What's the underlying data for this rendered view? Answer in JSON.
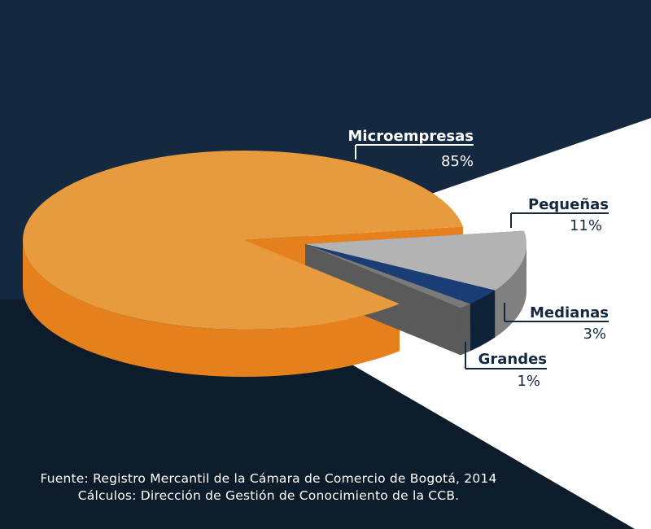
{
  "colors": {
    "background_top": "#14283f",
    "background_bottom": "#0d1c2b",
    "spotlight": "#ffffff",
    "label_name": "#14283f",
    "label_value": "#14283f",
    "label_name_on_dark": "#ffffff",
    "label_value_on_dark": "#ffffff"
  },
  "chart_data": {
    "type": "pie",
    "style": "3d-exploded",
    "categories": [
      "Microempresas",
      "Pequeñas",
      "Medianas",
      "Grandes"
    ],
    "values": [
      85,
      11,
      3,
      1
    ],
    "value_labels": [
      "85%",
      "11%",
      "3%",
      "1%"
    ],
    "colors": [
      "#e89a3e",
      "#b3b3b3",
      "#1a3d75",
      "#7a7a7a"
    ],
    "side_colors": [
      "#e5801c",
      "#808080",
      "#0f2338",
      "#5a5a5a"
    ],
    "exploded": [
      false,
      true,
      true,
      true
    ],
    "legend": "none"
  },
  "source": {
    "line1": "Fuente: Registro Mercantil de la Cámara de Comercio de Bogotá, 2014",
    "line2": "Cálculos: Dirección de Gestión de Conocimiento de la CCB."
  }
}
